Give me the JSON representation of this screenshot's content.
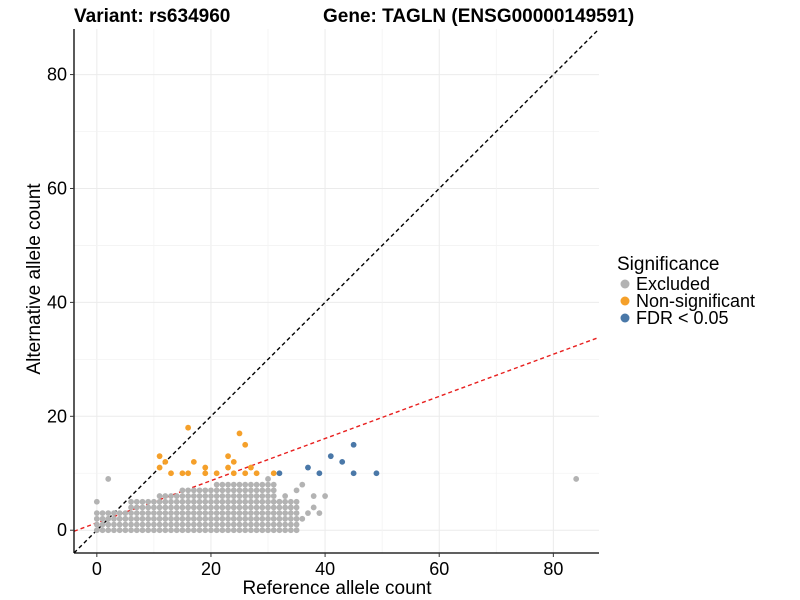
{
  "chart_data": {
    "type": "scatter",
    "title_variant": "Variant: rs634960",
    "title_gene": "Gene: TAGLN (ENSG00000149591)",
    "xlabel": "Reference allele count",
    "ylabel": "Alternative allele count",
    "xlim": [
      -4,
      88
    ],
    "ylim": [
      -4,
      88
    ],
    "x_ticks": [
      0,
      20,
      40,
      60,
      80
    ],
    "y_ticks": [
      0,
      20,
      40,
      60,
      80
    ],
    "grid": true,
    "legend": {
      "title": "Significance",
      "position": "right",
      "items": [
        {
          "label": "Excluded",
          "color": "#b3b3b3"
        },
        {
          "label": "Non-significant",
          "color": "#f5a02a"
        },
        {
          "label": "FDR < 0.05",
          "color": "#4a78a8"
        }
      ]
    },
    "reference_lines": [
      {
        "name": "identity",
        "slope": 1,
        "intercept": 0,
        "color": "#000000",
        "style": "dashed"
      },
      {
        "name": "fit",
        "slope": 0.37,
        "intercept": 1.3,
        "color": "#e8201f",
        "style": "dashed"
      }
    ],
    "series": [
      {
        "name": "Non-significant",
        "color": "#f5a02a",
        "points": [
          [
            11,
            13
          ],
          [
            11,
            11
          ],
          [
            12,
            12
          ],
          [
            13,
            10
          ],
          [
            15,
            10
          ],
          [
            16,
            18
          ],
          [
            16,
            10
          ],
          [
            17,
            12
          ],
          [
            19,
            11
          ],
          [
            19,
            10
          ],
          [
            21,
            10
          ],
          [
            23,
            13
          ],
          [
            23,
            11
          ],
          [
            24,
            12
          ],
          [
            24,
            10
          ],
          [
            25,
            17
          ],
          [
            26,
            15
          ],
          [
            26,
            10
          ],
          [
            27,
            11
          ],
          [
            28,
            10
          ],
          [
            31,
            10
          ]
        ]
      },
      {
        "name": "FDR < 0.05",
        "color": "#4a78a8",
        "points": [
          [
            32,
            10
          ],
          [
            37,
            11
          ],
          [
            39,
            10
          ],
          [
            41,
            13
          ],
          [
            43,
            12
          ],
          [
            45,
            15
          ],
          [
            45,
            10
          ],
          [
            49,
            10
          ]
        ]
      }
    ],
    "excluded_cloud": {
      "name": "Excluded",
      "color": "#b3b3b3",
      "scatter_points": [
        [
          84,
          9
        ],
        [
          2,
          9
        ],
        [
          0,
          5
        ],
        [
          36,
          8
        ],
        [
          38,
          6
        ],
        [
          32,
          5
        ],
        [
          34,
          4
        ],
        [
          39,
          3
        ],
        [
          40,
          6
        ],
        [
          38,
          4
        ],
        [
          36,
          2
        ],
        [
          33,
          6
        ],
        [
          30,
          9
        ],
        [
          35,
          7
        ],
        [
          37,
          3
        ]
      ],
      "bands": [
        {
          "x": [
            0,
            5
          ],
          "y_max": 3
        },
        {
          "x": [
            6,
            10
          ],
          "y_max": 5
        },
        {
          "x": [
            11,
            14
          ],
          "y_max": 6
        },
        {
          "x": [
            15,
            20
          ],
          "y_max": 7
        },
        {
          "x": [
            21,
            25
          ],
          "y_max": 8
        },
        {
          "x": [
            26,
            31
          ],
          "y_max": 8
        },
        {
          "x": [
            32,
            35
          ],
          "y_max": 5
        }
      ]
    }
  }
}
